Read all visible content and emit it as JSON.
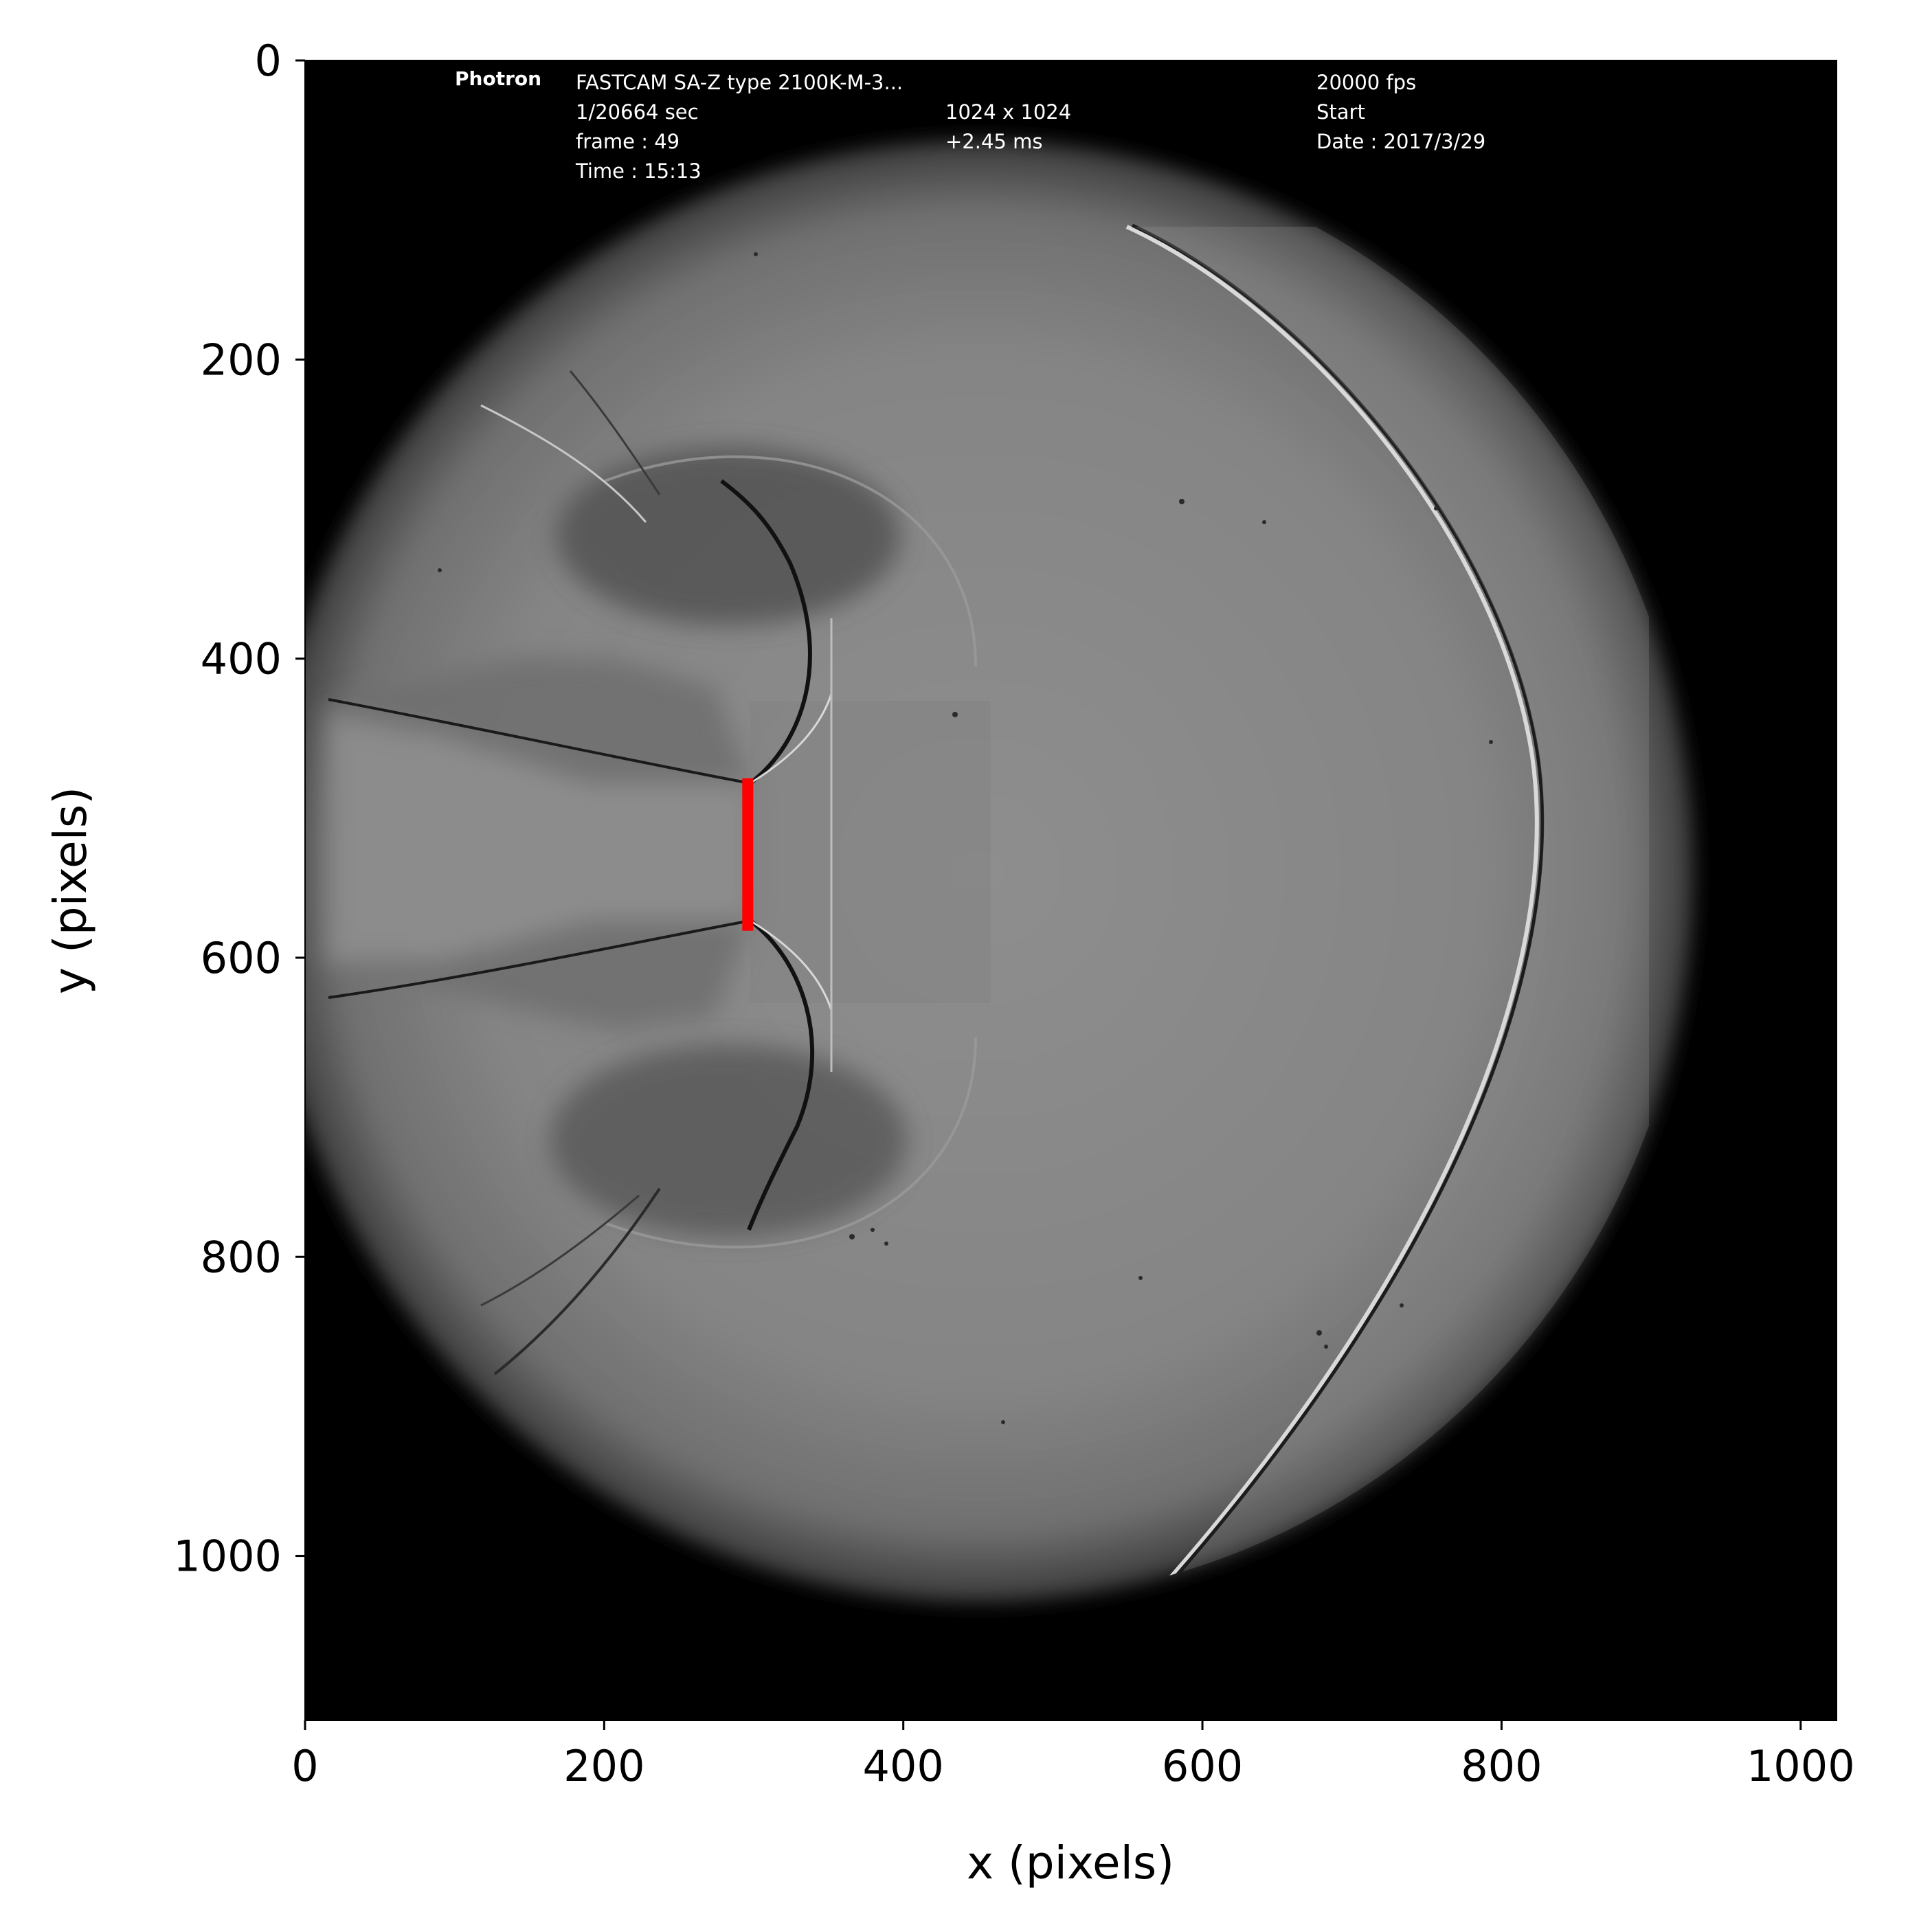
{
  "figure": {
    "xlabel": "x (pixels)",
    "ylabel": "y (pixels)"
  },
  "camera_overlay": {
    "brand": "Photron",
    "model": "FASTCAM SA-Z type 2100K-M-3...",
    "shutter": "1/20664 sec",
    "frame": "frame : 49",
    "time": "Time : 15:13",
    "resolution": "1024 x 1024",
    "offset": "+2.45 ms",
    "fps": "20000 fps",
    "trigger": "Start",
    "date": "Date : 2017/3/29"
  },
  "chart_data": {
    "type": "image",
    "xlabel": "x (pixels)",
    "ylabel": "y (pixels)",
    "xlim": [
      0,
      1024
    ],
    "ylim": [
      1110,
      0
    ],
    "xticks": [
      0,
      200,
      400,
      600,
      800,
      1000
    ],
    "yticks": [
      0,
      200,
      400,
      600,
      800,
      1000
    ],
    "grid": false,
    "colormap": "gray",
    "annotations": [
      {
        "type": "line",
        "color": "#ff0000",
        "x": [
          296,
          296
        ],
        "y": [
          480,
          582
        ]
      }
    ]
  }
}
